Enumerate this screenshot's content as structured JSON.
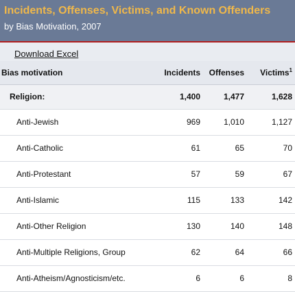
{
  "header": {
    "title": "Incidents, Offenses, Victims, and Known Offenders",
    "subtitle": "by Bias Motivation, 2007"
  },
  "toolbar": {
    "download_label": "Download Excel"
  },
  "table": {
    "columns": {
      "bias": "Bias motivation",
      "incidents": "Incidents",
      "offenses": "Offenses",
      "victims": "Victims",
      "victims_footnote": "1"
    },
    "group": {
      "label": "Religion:",
      "incidents": "1,400",
      "offenses": "1,477",
      "victims": "1,628"
    },
    "rows": [
      {
        "label": "Anti-Jewish",
        "incidents": "969",
        "offenses": "1,010",
        "victims": "1,127"
      },
      {
        "label": "Anti-Catholic",
        "incidents": "61",
        "offenses": "65",
        "victims": "70"
      },
      {
        "label": "Anti-Protestant",
        "incidents": "57",
        "offenses": "59",
        "victims": "67"
      },
      {
        "label": "Anti-Islamic",
        "incidents": "115",
        "offenses": "133",
        "victims": "142"
      },
      {
        "label": "Anti-Other Religion",
        "incidents": "130",
        "offenses": "140",
        "victims": "148"
      },
      {
        "label": "Anti-Multiple Religions, Group",
        "incidents": "62",
        "offenses": "64",
        "victims": "66"
      },
      {
        "label": "Anti-Atheism/Agnosticism/etc.",
        "incidents": "6",
        "offenses": "6",
        "victims": "8"
      }
    ]
  }
}
